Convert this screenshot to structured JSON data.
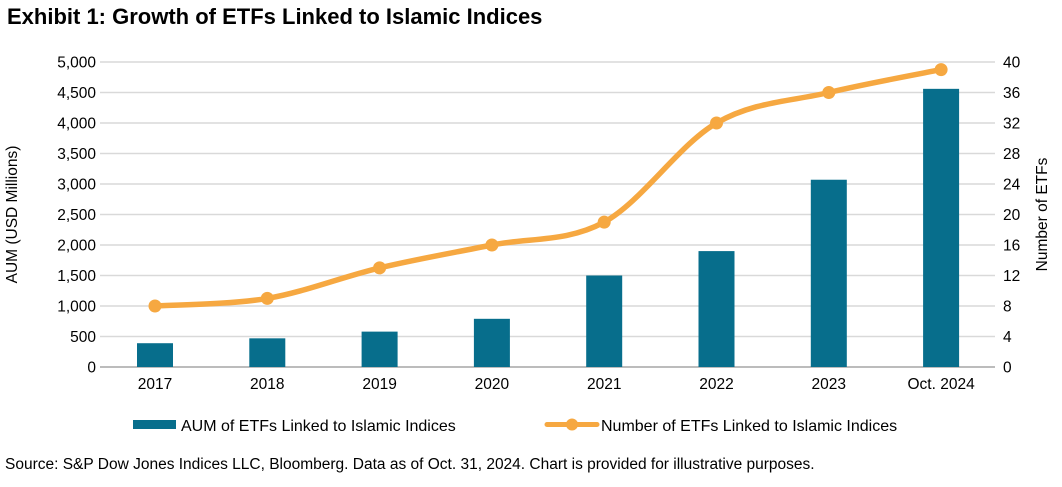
{
  "title": "Exhibit 1: Growth of ETFs Linked to Islamic Indices",
  "source": "Source: S&P Dow Jones Indices LLC, Bloomberg. Data as of Oct. 31, 2024. Chart is provided for illustrative purposes.",
  "colors": {
    "bar": "#076e8c",
    "line": "#f6a841",
    "grid": "#d9d9d9",
    "axis_line": "#a6a6a6",
    "text": "#000000"
  },
  "chart_data": {
    "type": "bar+line",
    "title": "Exhibit 1: Growth of ETFs Linked to Islamic Indices",
    "categories": [
      "2017",
      "2018",
      "2019",
      "2020",
      "2021",
      "2022",
      "2023",
      "Oct. 2024"
    ],
    "series": [
      {
        "name": "AUM of ETFs Linked to Islamic Indices",
        "type": "bar",
        "axis": "left",
        "color": "#076e8c",
        "values": [
          390,
          470,
          580,
          790,
          1500,
          1900,
          3070,
          4560
        ]
      },
      {
        "name": "Number of ETFs Linked to Islamic Indices",
        "type": "line",
        "axis": "right",
        "color": "#f6a841",
        "values": [
          8,
          9,
          13,
          16,
          19,
          32,
          36,
          39
        ]
      }
    ],
    "left_axis": {
      "label": "AUM (USD Millions)",
      "min": 0,
      "max": 5000,
      "step": 500,
      "tick_labels": [
        "0",
        "500",
        "1,000",
        "1,500",
        "2,000",
        "2,500",
        "3,000",
        "3,500",
        "4,000",
        "4,500",
        "5,000"
      ]
    },
    "right_axis": {
      "label": "Number of ETFs",
      "min": 0,
      "max": 40,
      "step": 4,
      "tick_labels": [
        "0",
        "4",
        "8",
        "12",
        "16",
        "20",
        "24",
        "28",
        "32",
        "36",
        "40"
      ]
    },
    "grid": true,
    "legend_position": "bottom"
  }
}
